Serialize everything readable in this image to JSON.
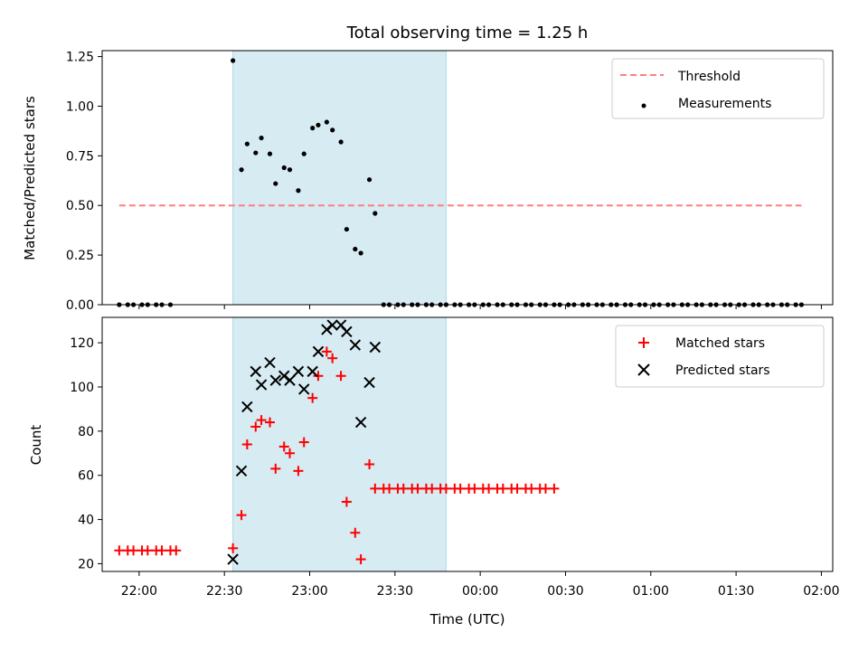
{
  "title": "Total observing time = 1.25 h",
  "xlabel": "Time (UTC)",
  "x_tick_labels": [
    "22:00",
    "22:30",
    "23:00",
    "23:30",
    "00:00",
    "00:30",
    "01:00",
    "01:30",
    "02:00"
  ],
  "colors": {
    "threshold": "#ff7f7f",
    "measurements": "#000000",
    "matched": "#ff0000",
    "predicted": "#000000",
    "shade": "#add8e6"
  },
  "chart_data": [
    {
      "type": "scatter",
      "ylabel": "Matched/Predicted stars",
      "ylim": [
        0,
        1.28
      ],
      "yticks": [
        0.0,
        0.25,
        0.5,
        0.75,
        1.0,
        1.25
      ],
      "ytick_labels": [
        "0.00",
        "0.25",
        "0.50",
        "0.75",
        "1.00",
        "1.25"
      ],
      "xlim": [
        "21:47",
        "02:04"
      ],
      "observing_window": [
        "22:33",
        "23:48"
      ],
      "legend_position": "top-right",
      "threshold": {
        "name": "Threshold",
        "value": 0.5,
        "x_range": [
          "21:53",
          "01:53"
        ],
        "style": "dashed"
      },
      "series": [
        {
          "name": "Measurements",
          "x": [
            "21:53",
            "21:56",
            "21:58",
            "22:01",
            "22:03",
            "22:06",
            "22:08",
            "22:11",
            "22:33",
            "22:36",
            "22:38",
            "22:41",
            "22:43",
            "22:46",
            "22:48",
            "22:51",
            "22:53",
            "22:56",
            "22:58",
            "23:01",
            "23:03",
            "23:06",
            "23:08",
            "23:11",
            "23:13",
            "23:16",
            "23:18",
            "23:21",
            "23:23",
            "23:26",
            "23:28",
            "23:31",
            "23:33",
            "23:36",
            "23:38",
            "23:41",
            "23:43",
            "23:46",
            "23:48",
            "23:51",
            "23:53",
            "23:56",
            "23:58",
            "00:01",
            "00:03",
            "00:06",
            "00:08",
            "00:11",
            "00:13",
            "00:16",
            "00:18",
            "00:21",
            "00:23",
            "00:26",
            "00:28",
            "00:31",
            "00:33",
            "00:36",
            "00:38",
            "00:41",
            "00:43",
            "00:46",
            "00:48",
            "00:51",
            "00:53",
            "00:56",
            "00:58",
            "01:01",
            "01:03",
            "01:06",
            "01:08",
            "01:11",
            "01:13",
            "01:16",
            "01:18",
            "01:21",
            "01:23",
            "01:26",
            "01:28",
            "01:31",
            "01:33",
            "01:36",
            "01:38",
            "01:41",
            "01:43",
            "01:46",
            "01:48",
            "01:51",
            "01:53"
          ],
          "values": [
            0,
            0,
            0,
            0,
            0,
            0,
            0,
            0,
            1.23,
            0.68,
            0.81,
            0.765,
            0.84,
            0.76,
            0.61,
            0.69,
            0.68,
            0.575,
            0.76,
            0.89,
            0.905,
            0.92,
            0.88,
            0.82,
            0.38,
            0.28,
            0.26,
            0.63,
            0.46,
            0,
            0,
            0,
            0,
            0,
            0,
            0,
            0,
            0,
            0,
            0,
            0,
            0,
            0,
            0,
            0,
            0,
            0,
            0,
            0,
            0,
            0,
            0,
            0,
            0,
            0,
            0,
            0,
            0,
            0,
            0,
            0,
            0,
            0,
            0,
            0,
            0,
            0,
            0,
            0,
            0,
            0,
            0,
            0,
            0,
            0,
            0,
            0,
            0,
            0,
            0,
            0,
            0,
            0,
            0,
            0,
            0,
            0,
            0,
            0
          ]
        }
      ]
    },
    {
      "type": "scatter",
      "ylabel": "Count",
      "ylim": [
        16.5,
        131.5
      ],
      "yticks": [
        20,
        40,
        60,
        80,
        100,
        120
      ],
      "ytick_labels": [
        "20",
        "40",
        "60",
        "80",
        "100",
        "120"
      ],
      "xlim": [
        "21:47",
        "02:04"
      ],
      "observing_window": [
        "22:33",
        "23:48"
      ],
      "legend_position": "top-right",
      "series": [
        {
          "name": "Matched stars",
          "marker": "plus",
          "points": [
            [
              "21:53",
              26
            ],
            [
              "21:56",
              26
            ],
            [
              "21:58",
              26
            ],
            [
              "22:01",
              26
            ],
            [
              "22:03",
              26
            ],
            [
              "22:06",
              26
            ],
            [
              "22:08",
              26
            ],
            [
              "22:11",
              26
            ],
            [
              "22:13",
              26
            ],
            [
              "22:33",
              27
            ],
            [
              "22:36",
              42
            ],
            [
              "22:38",
              74
            ],
            [
              "22:41",
              82
            ],
            [
              "22:43",
              85
            ],
            [
              "22:46",
              84
            ],
            [
              "22:48",
              63
            ],
            [
              "22:51",
              73
            ],
            [
              "22:53",
              70
            ],
            [
              "22:56",
              62
            ],
            [
              "22:58",
              75
            ],
            [
              "23:01",
              95
            ],
            [
              "23:03",
              105
            ],
            [
              "23:06",
              116
            ],
            [
              "23:08",
              113
            ],
            [
              "23:11",
              105
            ],
            [
              "23:13",
              48
            ],
            [
              "23:16",
              34
            ],
            [
              "23:18",
              22
            ],
            [
              "23:21",
              65
            ],
            [
              "23:23",
              54
            ],
            [
              "23:26",
              54
            ],
            [
              "23:28",
              54
            ],
            [
              "23:31",
              54
            ],
            [
              "23:33",
              54
            ],
            [
              "23:36",
              54
            ],
            [
              "23:38",
              54
            ],
            [
              "23:41",
              54
            ],
            [
              "23:43",
              54
            ],
            [
              "23:46",
              54
            ],
            [
              "23:48",
              54
            ],
            [
              "23:51",
              54
            ],
            [
              "23:53",
              54
            ],
            [
              "23:56",
              54
            ],
            [
              "23:58",
              54
            ],
            [
              "00:01",
              54
            ],
            [
              "00:03",
              54
            ],
            [
              "00:06",
              54
            ],
            [
              "00:08",
              54
            ],
            [
              "00:11",
              54
            ],
            [
              "00:13",
              54
            ],
            [
              "00:16",
              54
            ],
            [
              "00:18",
              54
            ],
            [
              "00:21",
              54
            ],
            [
              "00:23",
              54
            ],
            [
              "00:26",
              54
            ]
          ]
        },
        {
          "name": "Predicted stars",
          "marker": "x",
          "points": [
            [
              "22:33",
              22
            ],
            [
              "22:36",
              62
            ],
            [
              "22:38",
              91
            ],
            [
              "22:41",
              107
            ],
            [
              "22:43",
              101
            ],
            [
              "22:46",
              111
            ],
            [
              "22:48",
              103
            ],
            [
              "22:51",
              105
            ],
            [
              "22:53",
              103
            ],
            [
              "22:56",
              107
            ],
            [
              "22:58",
              99
            ],
            [
              "23:01",
              107
            ],
            [
              "23:03",
              116
            ],
            [
              "23:06",
              126
            ],
            [
              "23:08",
              128
            ],
            [
              "23:11",
              128
            ],
            [
              "23:13",
              125
            ],
            [
              "23:16",
              119
            ],
            [
              "23:18",
              84
            ],
            [
              "23:21",
              102
            ],
            [
              "23:23",
              118
            ]
          ]
        }
      ]
    }
  ]
}
